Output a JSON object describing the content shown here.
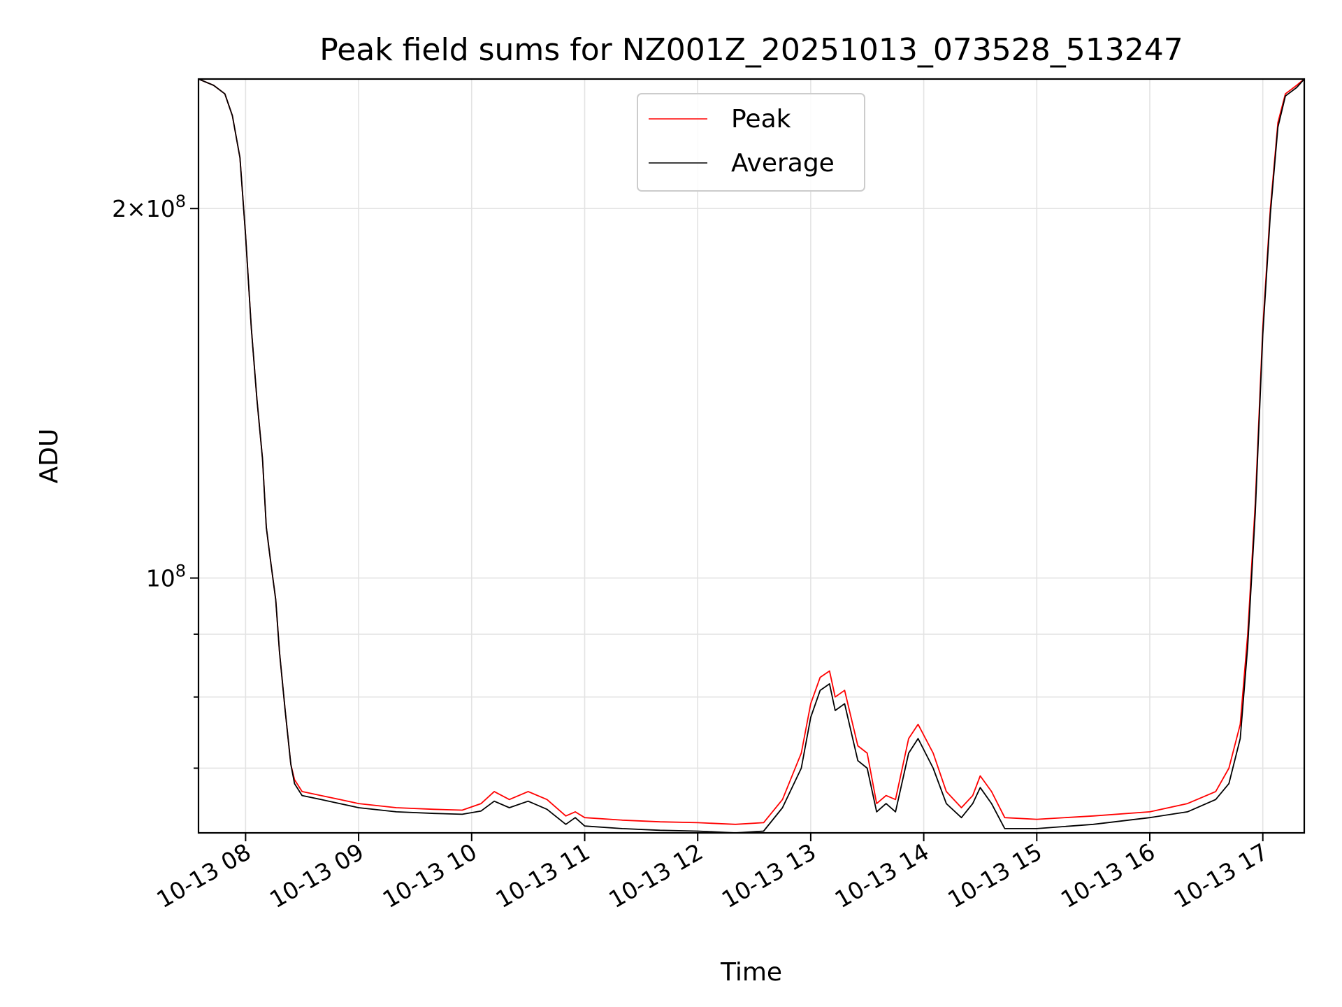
{
  "chart_data": {
    "type": "line",
    "title": "Peak field sums for NZ001Z_20251013_073528_513247",
    "xlabel": "Time",
    "ylabel": "ADU",
    "yscale": "log",
    "xlim": [
      "2025-10-13 07:35",
      "2025-10-13 17:22"
    ],
    "ylim": [
      62000000,
      255000000
    ],
    "grid": true,
    "legend_position": "upper-center",
    "x_ticks": [
      {
        "value": "2025-10-13 08:00",
        "label": "10-13 08"
      },
      {
        "value": "2025-10-13 09:00",
        "label": "10-13 09"
      },
      {
        "value": "2025-10-13 10:00",
        "label": "10-13 10"
      },
      {
        "value": "2025-10-13 11:00",
        "label": "10-13 11"
      },
      {
        "value": "2025-10-13 12:00",
        "label": "10-13 12"
      },
      {
        "value": "2025-10-13 13:00",
        "label": "10-13 13"
      },
      {
        "value": "2025-10-13 14:00",
        "label": "10-13 14"
      },
      {
        "value": "2025-10-13 15:00",
        "label": "10-13 15"
      },
      {
        "value": "2025-10-13 16:00",
        "label": "10-13 16"
      },
      {
        "value": "2025-10-13 17:00",
        "label": "10-13 17"
      }
    ],
    "y_ticks": [
      {
        "value": 100000000,
        "mantissa": "",
        "exponent": "8"
      },
      {
        "value": 200000000,
        "mantissa": "2",
        "exponent": "8"
      }
    ],
    "y_minor_ticks": [
      70000000,
      80000000,
      90000000
    ],
    "x": [
      "2025-10-13 07:35",
      "2025-10-13 07:43",
      "2025-10-13 07:49",
      "2025-10-13 07:53",
      "2025-10-13 07:57",
      "2025-10-13 08:00",
      "2025-10-13 08:03",
      "2025-10-13 08:06",
      "2025-10-13 08:09",
      "2025-10-13 08:11",
      "2025-10-13 08:13",
      "2025-10-13 08:16",
      "2025-10-13 08:18",
      "2025-10-13 08:21",
      "2025-10-13 08:24",
      "2025-10-13 08:26",
      "2025-10-13 08:30",
      "2025-10-13 08:40",
      "2025-10-13 08:50",
      "2025-10-13 09:00",
      "2025-10-13 09:20",
      "2025-10-13 09:40",
      "2025-10-13 09:55",
      "2025-10-13 10:05",
      "2025-10-13 10:12",
      "2025-10-13 10:20",
      "2025-10-13 10:30",
      "2025-10-13 10:40",
      "2025-10-13 10:50",
      "2025-10-13 10:55",
      "2025-10-13 11:00",
      "2025-10-13 11:20",
      "2025-10-13 11:40",
      "2025-10-13 12:00",
      "2025-10-13 12:20",
      "2025-10-13 12:35",
      "2025-10-13 12:45",
      "2025-10-13 12:55",
      "2025-10-13 13:00",
      "2025-10-13 13:05",
      "2025-10-13 13:10",
      "2025-10-13 13:13",
      "2025-10-13 13:18",
      "2025-10-13 13:25",
      "2025-10-13 13:30",
      "2025-10-13 13:35",
      "2025-10-13 13:40",
      "2025-10-13 13:45",
      "2025-10-13 13:52",
      "2025-10-13 13:57",
      "2025-10-13 14:05",
      "2025-10-13 14:12",
      "2025-10-13 14:20",
      "2025-10-13 14:26",
      "2025-10-13 14:30",
      "2025-10-13 14:36",
      "2025-10-13 14:43",
      "2025-10-13 15:00",
      "2025-10-13 15:30",
      "2025-10-13 16:00",
      "2025-10-13 16:20",
      "2025-10-13 16:35",
      "2025-10-13 16:42",
      "2025-10-13 16:48",
      "2025-10-13 16:52",
      "2025-10-13 16:56",
      "2025-10-13 17:00",
      "2025-10-13 17:04",
      "2025-10-13 17:08",
      "2025-10-13 17:12",
      "2025-10-13 17:18",
      "2025-10-13 17:22"
    ],
    "series": [
      {
        "name": "Peak",
        "color": "#ff0000",
        "values": [
          255000000,
          252000000,
          248000000,
          238000000,
          220000000,
          190000000,
          160000000,
          140000000,
          125000000,
          110000000,
          104000000,
          96000000,
          87000000,
          78000000,
          70500000,
          68500000,
          67000000,
          66500000,
          66000000,
          65500000,
          65000000,
          64800000,
          64700000,
          65500000,
          67000000,
          66000000,
          67000000,
          66000000,
          64000000,
          64500000,
          63800000,
          63500000,
          63300000,
          63200000,
          63000000,
          63200000,
          66000000,
          72000000,
          79000000,
          83000000,
          84000000,
          80000000,
          81000000,
          73000000,
          72000000,
          65500000,
          66500000,
          66000000,
          74000000,
          76000000,
          72000000,
          67000000,
          65000000,
          66500000,
          69000000,
          67000000,
          63800000,
          63600000,
          64000000,
          64500000,
          65500000,
          67000000,
          70000000,
          76000000,
          90000000,
          115000000,
          160000000,
          200000000,
          235000000,
          248000000,
          252000000,
          255000000
        ]
      },
      {
        "name": "Average",
        "color": "#000000",
        "values": [
          255000000,
          252000000,
          248000000,
          238000000,
          220000000,
          190000000,
          160000000,
          140000000,
          125000000,
          110000000,
          104000000,
          96000000,
          87000000,
          78000000,
          70500000,
          68000000,
          66500000,
          66000000,
          65500000,
          65000000,
          64500000,
          64300000,
          64200000,
          64600000,
          65800000,
          65000000,
          65800000,
          64800000,
          63000000,
          63800000,
          62800000,
          62500000,
          62300000,
          62200000,
          62000000,
          62200000,
          65000000,
          70000000,
          77000000,
          81000000,
          82000000,
          78000000,
          79000000,
          71000000,
          70000000,
          64500000,
          65500000,
          64500000,
          72000000,
          74000000,
          70000000,
          65500000,
          63800000,
          65500000,
          67500000,
          65500000,
          62500000,
          62500000,
          63000000,
          63800000,
          64500000,
          66000000,
          68000000,
          74000000,
          88000000,
          113000000,
          158000000,
          198000000,
          233000000,
          247000000,
          251000000,
          255000000
        ]
      }
    ]
  }
}
